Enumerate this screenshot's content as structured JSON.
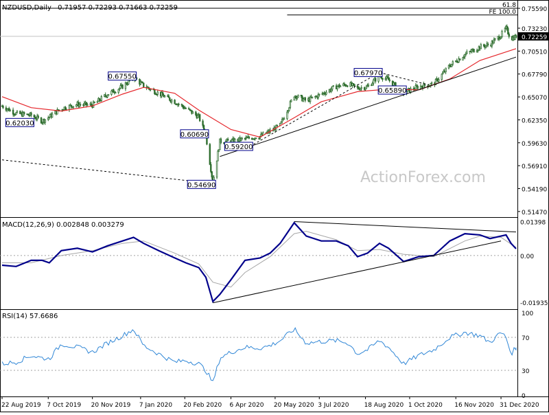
{
  "header": {
    "symbol": "NZDUSD,Daily",
    "ohlc": "0.71957 0.72293 0.71663 0.72259"
  },
  "watermark": "ActionForex.com",
  "colors": {
    "candle": "#2f6e2f",
    "sma": "#e5262b",
    "macd_line": "#00008b",
    "macd_signal": "#a6a6a6",
    "rsi": "#2f86d6",
    "trend": "#000000",
    "last_price_bg": "#000000",
    "frame": "#000000",
    "label_border": "#00008b"
  },
  "chart_data": [
    {
      "type": "candlestick",
      "title": "NZDUSD,Daily",
      "ohlc_text": "0.71957 0.72293 0.71663 0.72259",
      "ylim": [
        0.5113,
        0.7625
      ],
      "y_ticks": [
        "0.75590",
        "0.73230",
        "0.70510",
        "0.67790",
        "0.65070",
        "0.62350",
        "0.59630",
        "0.56910",
        "0.54190",
        "0.51470"
      ],
      "x_ticks": [
        "22 Aug 2019",
        "7 Oct 2019",
        "20 Nov 2019",
        "7 Jan 2020",
        "20 Feb 2020",
        "6 Apr 2020",
        "20 May 2020",
        "3 Jul 2020",
        "18 Aug 2020",
        "1 Oct 2020",
        "16 Nov 2020",
        "31 Dec 2020"
      ],
      "close_path": [
        {
          "date": "2019-08-22",
          "value": 0.64
        },
        {
          "date": "2019-09-05",
          "value": 0.631
        },
        {
          "date": "2019-09-20",
          "value": 0.629
        },
        {
          "date": "2019-10-01",
          "value": 0.622
        },
        {
          "date": "2019-10-08",
          "value": 0.627
        },
        {
          "date": "2019-10-20",
          "value": 0.637
        },
        {
          "date": "2019-11-05",
          "value": 0.642
        },
        {
          "date": "2019-11-20",
          "value": 0.641
        },
        {
          "date": "2019-12-05",
          "value": 0.654
        },
        {
          "date": "2019-12-20",
          "value": 0.663
        },
        {
          "date": "2019-12-31",
          "value": 0.674
        },
        {
          "date": "2020-01-10",
          "value": 0.664
        },
        {
          "date": "2020-01-25",
          "value": 0.655
        },
        {
          "date": "2020-02-10",
          "value": 0.645
        },
        {
          "date": "2020-02-21",
          "value": 0.637
        },
        {
          "date": "2020-03-05",
          "value": 0.627
        },
        {
          "date": "2020-03-12",
          "value": 0.605
        },
        {
          "date": "2020-03-19",
          "value": 0.549
        },
        {
          "date": "2020-03-26",
          "value": 0.598
        },
        {
          "date": "2020-04-06",
          "value": 0.598
        },
        {
          "date": "2020-04-20",
          "value": 0.601
        },
        {
          "date": "2020-05-05",
          "value": 0.604
        },
        {
          "date": "2020-05-15",
          "value": 0.61
        },
        {
          "date": "2020-05-25",
          "value": 0.617
        },
        {
          "date": "2020-06-08",
          "value": 0.653
        },
        {
          "date": "2020-06-20",
          "value": 0.646
        },
        {
          "date": "2020-07-05",
          "value": 0.654
        },
        {
          "date": "2020-07-20",
          "value": 0.663
        },
        {
          "date": "2020-08-01",
          "value": 0.666
        },
        {
          "date": "2020-08-10",
          "value": 0.661
        },
        {
          "date": "2020-08-20",
          "value": 0.663
        },
        {
          "date": "2020-09-01",
          "value": 0.676
        },
        {
          "date": "2020-09-10",
          "value": 0.671
        },
        {
          "date": "2020-09-25",
          "value": 0.656
        },
        {
          "date": "2020-10-10",
          "value": 0.663
        },
        {
          "date": "2020-10-25",
          "value": 0.666
        },
        {
          "date": "2020-11-10",
          "value": 0.688
        },
        {
          "date": "2020-11-25",
          "value": 0.701
        },
        {
          "date": "2020-12-10",
          "value": 0.71
        },
        {
          "date": "2020-12-20",
          "value": 0.713
        },
        {
          "date": "2020-12-31",
          "value": 0.724
        },
        {
          "date": "2021-01-05",
          "value": 0.732
        },
        {
          "date": "2021-01-10",
          "value": 0.72
        },
        {
          "date": "2021-01-15",
          "value": 0.7226
        }
      ],
      "sma_path": [
        {
          "date": "2019-08-22",
          "value": 0.651
        },
        {
          "date": "2019-09-20",
          "value": 0.638
        },
        {
          "date": "2019-10-20",
          "value": 0.634
        },
        {
          "date": "2019-11-20",
          "value": 0.64
        },
        {
          "date": "2019-12-20",
          "value": 0.654
        },
        {
          "date": "2020-01-10",
          "value": 0.662
        },
        {
          "date": "2020-02-10",
          "value": 0.655
        },
        {
          "date": "2020-03-05",
          "value": 0.635
        },
        {
          "date": "2020-04-06",
          "value": 0.612
        },
        {
          "date": "2020-05-05",
          "value": 0.603
        },
        {
          "date": "2020-06-08",
          "value": 0.626
        },
        {
          "date": "2020-07-05",
          "value": 0.645
        },
        {
          "date": "2020-08-10",
          "value": 0.657
        },
        {
          "date": "2020-09-10",
          "value": 0.66
        },
        {
          "date": "2020-10-10",
          "value": 0.659
        },
        {
          "date": "2020-11-10",
          "value": 0.672
        },
        {
          "date": "2020-12-10",
          "value": 0.694
        },
        {
          "date": "2021-01-15",
          "value": 0.708
        }
      ],
      "price_labels": [
        {
          "text": "0.62030",
          "date": "2019-09-20",
          "value": 0.6203
        },
        {
          "text": "0.67550",
          "date": "2019-12-31",
          "value": 0.6755
        },
        {
          "text": "0.60690",
          "date": "2020-03-12",
          "value": 0.6069
        },
        {
          "text": "0.54690",
          "date": "2020-03-19",
          "value": 0.5469
        },
        {
          "text": "0.59200",
          "date": "2020-04-25",
          "value": 0.592
        },
        {
          "text": "0.67970",
          "date": "2020-09-01",
          "value": 0.6797
        },
        {
          "text": "0.65890",
          "date": "2020-09-25",
          "value": 0.6589
        }
      ],
      "trendlines": [
        {
          "style": "solid",
          "from": {
            "date": "2020-03-26",
            "value": 0.58
          },
          "to": {
            "date": "2021-01-15",
            "value": 0.698
          }
        },
        {
          "style": "dashed",
          "from": {
            "date": "2019-08-22",
            "value": 0.576
          },
          "to": {
            "date": "2020-03-19",
            "value": 0.548
          }
        },
        {
          "style": "dashed",
          "from": {
            "date": "2020-04-25",
            "value": 0.592
          },
          "to": {
            "date": "2020-09-01",
            "value": 0.6797
          }
        },
        {
          "style": "dashed",
          "from": {
            "date": "2020-09-01",
            "value": 0.6797
          },
          "to": {
            "date": "2020-10-20",
            "value": 0.665
          }
        }
      ],
      "fib_lines": [
        {
          "label": "61.8",
          "value": 0.756,
          "from_date": "2019-08-22"
        },
        {
          "label": "FE 100.0",
          "value": 0.748,
          "from_date": "2020-06-01"
        }
      ],
      "last_price": "0.72259"
    },
    {
      "type": "line",
      "title": "MACD(12,26,9) 0.002848 0.003279",
      "ylim": [
        -0.021,
        0.0147
      ],
      "y_ticks": [
        "0.01398",
        "0.00",
        "-0.019352"
      ],
      "series": [
        {
          "name": "MACD",
          "points": [
            {
              "date": "2019-08-22",
              "value": -0.004
            },
            {
              "date": "2019-09-05",
              "value": -0.0045
            },
            {
              "date": "2019-09-20",
              "value": -0.002
            },
            {
              "date": "2019-10-01",
              "value": -0.002
            },
            {
              "date": "2019-10-08",
              "value": -0.003
            },
            {
              "date": "2019-10-20",
              "value": 0.002
            },
            {
              "date": "2019-11-05",
              "value": 0.003
            },
            {
              "date": "2019-11-20",
              "value": 0.0015
            },
            {
              "date": "2019-12-05",
              "value": 0.004
            },
            {
              "date": "2019-12-20",
              "value": 0.006
            },
            {
              "date": "2019-12-31",
              "value": 0.0075
            },
            {
              "date": "2020-01-10",
              "value": 0.005
            },
            {
              "date": "2020-01-25",
              "value": 0.002
            },
            {
              "date": "2020-02-10",
              "value": -0.001
            },
            {
              "date": "2020-02-21",
              "value": -0.003
            },
            {
              "date": "2020-03-05",
              "value": -0.005
            },
            {
              "date": "2020-03-12",
              "value": -0.009
            },
            {
              "date": "2020-03-19",
              "value": -0.019
            },
            {
              "date": "2020-03-26",
              "value": -0.016
            },
            {
              "date": "2020-04-06",
              "value": -0.01
            },
            {
              "date": "2020-04-20",
              "value": -0.002
            },
            {
              "date": "2020-05-05",
              "value": -0.001
            },
            {
              "date": "2020-05-15",
              "value": 0.001
            },
            {
              "date": "2020-05-25",
              "value": 0.005
            },
            {
              "date": "2020-06-08",
              "value": 0.0135
            },
            {
              "date": "2020-06-20",
              "value": 0.008
            },
            {
              "date": "2020-07-05",
              "value": 0.006
            },
            {
              "date": "2020-07-20",
              "value": 0.006
            },
            {
              "date": "2020-08-01",
              "value": 0.004
            },
            {
              "date": "2020-08-10",
              "value": -0.0005
            },
            {
              "date": "2020-08-20",
              "value": 0.001
            },
            {
              "date": "2020-09-01",
              "value": 0.005
            },
            {
              "date": "2020-09-10",
              "value": 0.003
            },
            {
              "date": "2020-09-25",
              "value": -0.0025
            },
            {
              "date": "2020-10-10",
              "value": -0.0005
            },
            {
              "date": "2020-10-25",
              "value": 0.0
            },
            {
              "date": "2020-11-10",
              "value": 0.006
            },
            {
              "date": "2020-11-25",
              "value": 0.009
            },
            {
              "date": "2020-12-10",
              "value": 0.0085
            },
            {
              "date": "2020-12-20",
              "value": 0.007
            },
            {
              "date": "2020-12-31",
              "value": 0.008
            },
            {
              "date": "2021-01-05",
              "value": 0.0085
            },
            {
              "date": "2021-01-10",
              "value": 0.005
            },
            {
              "date": "2021-01-15",
              "value": 0.0028
            }
          ]
        },
        {
          "name": "Signal",
          "points": [
            {
              "date": "2019-08-22",
              "value": -0.003
            },
            {
              "date": "2019-09-20",
              "value": -0.003
            },
            {
              "date": "2019-10-20",
              "value": 0.0
            },
            {
              "date": "2019-11-20",
              "value": 0.002
            },
            {
              "date": "2019-12-20",
              "value": 0.005
            },
            {
              "date": "2020-01-10",
              "value": 0.006
            },
            {
              "date": "2020-02-10",
              "value": 0.001
            },
            {
              "date": "2020-03-05",
              "value": -0.0035
            },
            {
              "date": "2020-03-19",
              "value": -0.011
            },
            {
              "date": "2020-04-06",
              "value": -0.013
            },
            {
              "date": "2020-04-20",
              "value": -0.007
            },
            {
              "date": "2020-05-15",
              "value": -0.0005
            },
            {
              "date": "2020-06-08",
              "value": 0.009
            },
            {
              "date": "2020-06-20",
              "value": 0.01
            },
            {
              "date": "2020-07-20",
              "value": 0.0065
            },
            {
              "date": "2020-08-10",
              "value": 0.002
            },
            {
              "date": "2020-09-01",
              "value": 0.0025
            },
            {
              "date": "2020-09-25",
              "value": 0.0005
            },
            {
              "date": "2020-10-25",
              "value": -0.0005
            },
            {
              "date": "2020-11-25",
              "value": 0.006
            },
            {
              "date": "2020-12-10",
              "value": 0.008
            },
            {
              "date": "2020-12-31",
              "value": 0.0075
            },
            {
              "date": "2021-01-15",
              "value": 0.0033
            }
          ]
        }
      ],
      "trendlines": [
        {
          "style": "solid",
          "from": {
            "date": "2020-03-19",
            "value": -0.0195
          },
          "to": {
            "date": "2020-12-31",
            "value": 0.006
          }
        },
        {
          "style": "solid",
          "from": {
            "date": "2020-06-08",
            "value": 0.014
          },
          "to": {
            "date": "2021-01-15",
            "value": 0.0097
          }
        }
      ]
    },
    {
      "type": "line",
      "title": "RSI(14) 57.6686",
      "ylim": [
        0,
        100
      ],
      "y_ticks": [
        "100",
        "70",
        "30",
        "0"
      ],
      "levels": [
        70,
        30
      ],
      "series": [
        {
          "name": "RSI",
          "points": [
            {
              "date": "2019-08-22",
              "value": 38
            },
            {
              "date": "2019-09-05",
              "value": 40
            },
            {
              "date": "2019-09-20",
              "value": 48
            },
            {
              "date": "2019-10-01",
              "value": 45
            },
            {
              "date": "2019-10-08",
              "value": 44
            },
            {
              "date": "2019-10-20",
              "value": 62
            },
            {
              "date": "2019-11-05",
              "value": 58
            },
            {
              "date": "2019-11-20",
              "value": 52
            },
            {
              "date": "2019-12-05",
              "value": 63
            },
            {
              "date": "2019-12-20",
              "value": 72
            },
            {
              "date": "2019-12-31",
              "value": 80
            },
            {
              "date": "2020-01-10",
              "value": 60
            },
            {
              "date": "2020-01-25",
              "value": 50
            },
            {
              "date": "2020-02-10",
              "value": 40
            },
            {
              "date": "2020-02-21",
              "value": 42
            },
            {
              "date": "2020-03-05",
              "value": 38
            },
            {
              "date": "2020-03-12",
              "value": 30
            },
            {
              "date": "2020-03-19",
              "value": 15
            },
            {
              "date": "2020-03-26",
              "value": 45
            },
            {
              "date": "2020-04-06",
              "value": 52
            },
            {
              "date": "2020-04-20",
              "value": 58
            },
            {
              "date": "2020-05-05",
              "value": 57
            },
            {
              "date": "2020-05-15",
              "value": 60
            },
            {
              "date": "2020-05-25",
              "value": 66
            },
            {
              "date": "2020-06-08",
              "value": 80
            },
            {
              "date": "2020-06-20",
              "value": 63
            },
            {
              "date": "2020-07-05",
              "value": 65
            },
            {
              "date": "2020-07-20",
              "value": 66
            },
            {
              "date": "2020-08-01",
              "value": 63
            },
            {
              "date": "2020-08-10",
              "value": 50
            },
            {
              "date": "2020-08-20",
              "value": 55
            },
            {
              "date": "2020-09-01",
              "value": 66
            },
            {
              "date": "2020-09-10",
              "value": 58
            },
            {
              "date": "2020-09-25",
              "value": 38
            },
            {
              "date": "2020-10-10",
              "value": 48
            },
            {
              "date": "2020-10-25",
              "value": 55
            },
            {
              "date": "2020-11-10",
              "value": 70
            },
            {
              "date": "2020-11-25",
              "value": 76
            },
            {
              "date": "2020-12-10",
              "value": 72
            },
            {
              "date": "2020-12-20",
              "value": 64
            },
            {
              "date": "2020-12-31",
              "value": 76
            },
            {
              "date": "2021-01-05",
              "value": 70
            },
            {
              "date": "2021-01-10",
              "value": 50
            },
            {
              "date": "2021-01-15",
              "value": 57.67
            }
          ]
        }
      ]
    }
  ]
}
